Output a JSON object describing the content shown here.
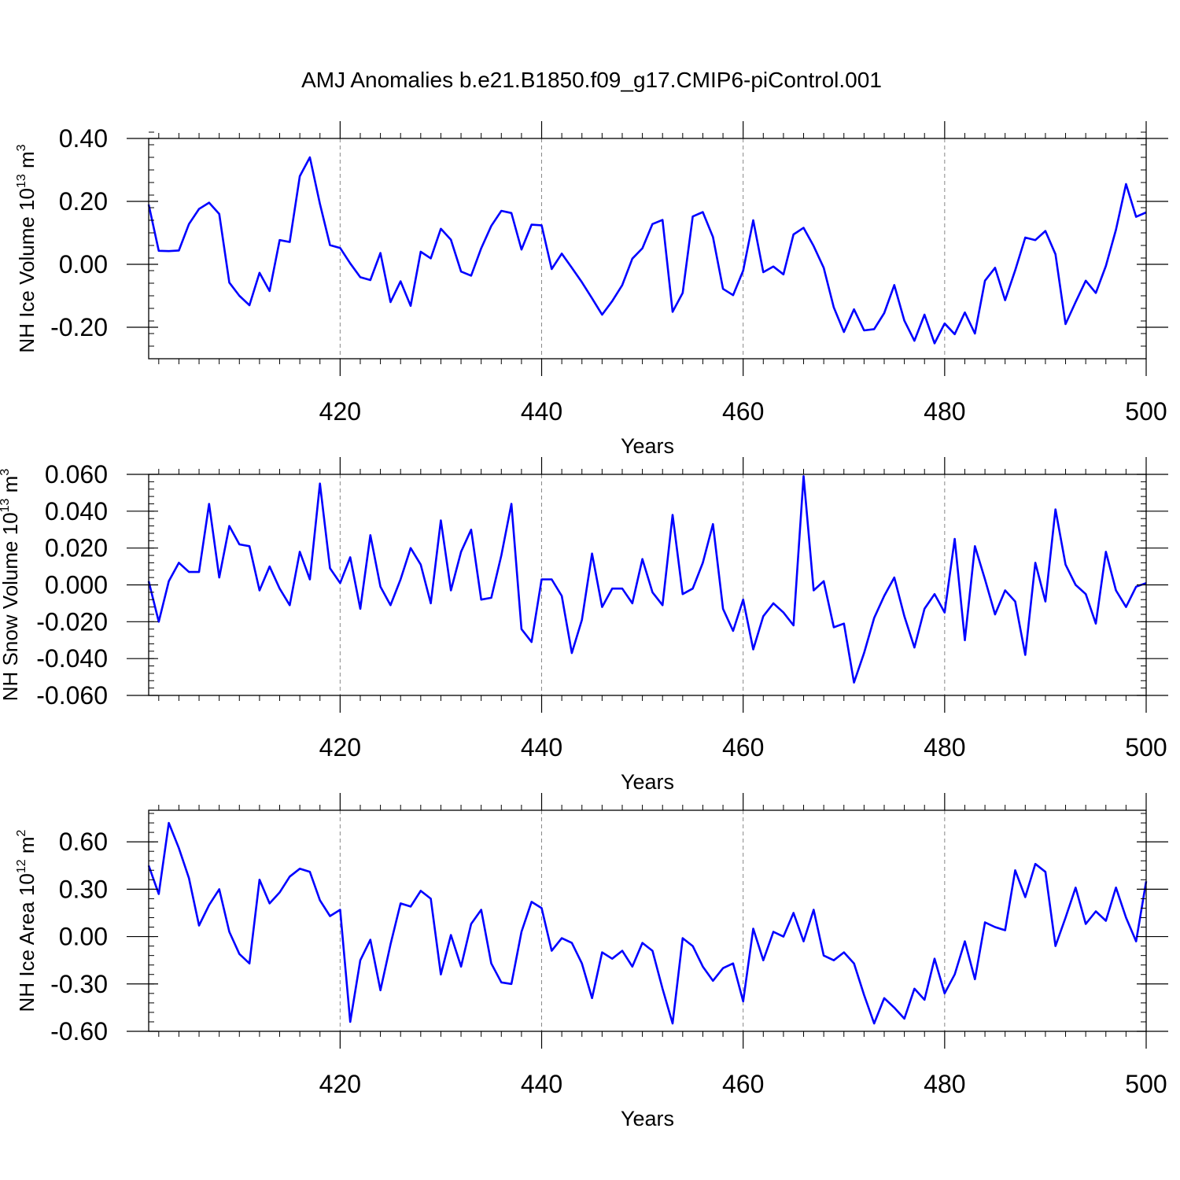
{
  "figure_title": "AMJ Anomalies b.e21.B1850.f09_g17.CMIP6-piControl.001",
  "colors": {
    "series": "#0000ff",
    "axes": "#000000",
    "grid": "#888888"
  },
  "chart_data": [
    {
      "type": "line",
      "title": "AMJ Anomalies b.e21.B1850.f09_g17.CMIP6-piControl.001",
      "xlabel": "Years",
      "ylabel": {
        "text": "NH Ice Volume 10",
        "sup1": "13",
        "unit": " m",
        "sup2": "3"
      },
      "xlim": [
        401,
        500
      ],
      "ylim": [
        -0.3,
        0.4
      ],
      "xticks": [
        420,
        440,
        460,
        480,
        500
      ],
      "yticks": [
        -0.2,
        0.0,
        0.2,
        0.4
      ],
      "ytick_labels": [
        "-0.20",
        "0.00",
        "0.20",
        "0.40"
      ],
      "yminor_step": 0.04,
      "grid": "vertical dashed at major x ticks",
      "x_start": 401,
      "values": [
        0.19,
        0.043,
        0.042,
        0.044,
        0.128,
        0.176,
        0.196,
        0.16,
        -0.058,
        -0.1,
        -0.13,
        -0.027,
        -0.085,
        0.077,
        0.071,
        0.28,
        0.34,
        0.192,
        0.061,
        0.052,
        0.003,
        -0.041,
        -0.05,
        0.036,
        -0.12,
        -0.054,
        -0.132,
        0.04,
        0.019,
        0.113,
        0.078,
        -0.023,
        -0.036,
        0.051,
        0.122,
        0.17,
        0.163,
        0.047,
        0.126,
        0.124,
        -0.015,
        0.034,
        -0.011,
        -0.057,
        -0.108,
        -0.16,
        -0.117,
        -0.066,
        0.018,
        0.051,
        0.128,
        0.141,
        -0.151,
        -0.091,
        0.152,
        0.166,
        0.087,
        -0.078,
        -0.098,
        -0.02,
        0.14,
        -0.025,
        -0.007,
        -0.032,
        0.095,
        0.116,
        0.058,
        -0.011,
        -0.137,
        -0.215,
        -0.143,
        -0.21,
        -0.206,
        -0.155,
        -0.066,
        -0.179,
        -0.243,
        -0.16,
        -0.251,
        -0.188,
        -0.222,
        -0.153,
        -0.22,
        -0.052,
        -0.011,
        -0.114,
        -0.019,
        0.085,
        0.077,
        0.106,
        0.032,
        -0.19,
        -0.12,
        -0.052,
        -0.091,
        -0.005,
        0.11,
        0.255,
        0.151,
        0.165
      ]
    },
    {
      "type": "line",
      "xlabel": "Years",
      "ylabel": {
        "text": "NH Snow Volume 10",
        "sup1": "13",
        "unit": " m",
        "sup2": "3"
      },
      "xlim": [
        401,
        500
      ],
      "ylim": [
        -0.06,
        0.06
      ],
      "xticks": [
        420,
        440,
        460,
        480,
        500
      ],
      "yticks": [
        -0.06,
        -0.04,
        -0.02,
        0.0,
        0.02,
        0.04,
        0.06
      ],
      "ytick_labels": [
        "-0.060",
        "-0.040",
        "-0.020",
        "0.000",
        "0.020",
        "0.040",
        "0.060"
      ],
      "yminor_step": 0.004,
      "grid": "vertical dashed at major x ticks",
      "x_start": 401,
      "values": [
        0.002,
        -0.02,
        0.002,
        0.012,
        0.007,
        0.007,
        0.044,
        0.004,
        0.032,
        0.022,
        0.021,
        -0.003,
        0.01,
        -0.002,
        -0.011,
        0.018,
        0.003,
        0.055,
        0.009,
        0.001,
        0.015,
        -0.013,
        0.027,
        -0.001,
        -0.011,
        0.003,
        0.02,
        0.011,
        -0.01,
        0.035,
        -0.003,
        0.018,
        0.03,
        -0.008,
        -0.007,
        0.016,
        0.044,
        -0.024,
        -0.031,
        0.003,
        0.003,
        -0.006,
        -0.037,
        -0.019,
        0.017,
        -0.012,
        -0.002,
        -0.002,
        -0.01,
        0.014,
        -0.004,
        -0.011,
        0.038,
        -0.005,
        -0.002,
        0.012,
        0.033,
        -0.013,
        -0.025,
        -0.008,
        -0.035,
        -0.017,
        -0.01,
        -0.015,
        -0.022,
        0.059,
        -0.003,
        0.002,
        -0.023,
        -0.021,
        -0.053,
        -0.037,
        -0.018,
        -0.006,
        0.004,
        -0.017,
        -0.034,
        -0.013,
        -0.005,
        -0.015,
        0.025,
        -0.03,
        0.021,
        0.003,
        -0.016,
        -0.003,
        -0.009,
        -0.038,
        0.012,
        -0.009,
        0.041,
        0.011,
        0.0,
        -0.005,
        -0.021,
        0.018,
        -0.003,
        -0.012,
        -0.001,
        0.001
      ]
    },
    {
      "type": "line",
      "xlabel": "Years",
      "ylabel": {
        "text": "NH Ice Area 10",
        "sup1": "12",
        "unit": " m",
        "sup2": "2"
      },
      "xlim": [
        401,
        500
      ],
      "ylim": [
        -0.6,
        0.8
      ],
      "xticks": [
        420,
        440,
        460,
        480,
        500
      ],
      "yticks": [
        -0.6,
        -0.3,
        0.0,
        0.3,
        0.6
      ],
      "ytick_labels": [
        "-0.60",
        "-0.30",
        "0.00",
        "0.30",
        "0.60"
      ],
      "yminor_step": 0.06,
      "grid": "vertical dashed at major x ticks",
      "x_start": 401,
      "values": [
        0.45,
        0.27,
        0.72,
        0.56,
        0.37,
        0.07,
        0.2,
        0.3,
        0.03,
        -0.11,
        -0.17,
        0.36,
        0.21,
        0.28,
        0.38,
        0.43,
        0.41,
        0.23,
        0.13,
        0.17,
        -0.54,
        -0.15,
        -0.02,
        -0.34,
        -0.05,
        0.21,
        0.19,
        0.29,
        0.24,
        -0.24,
        0.01,
        -0.19,
        0.08,
        0.17,
        -0.17,
        -0.29,
        -0.3,
        0.03,
        0.22,
        0.18,
        -0.09,
        -0.01,
        -0.04,
        -0.17,
        -0.39,
        -0.1,
        -0.14,
        -0.09,
        -0.19,
        -0.04,
        -0.09,
        -0.33,
        -0.55,
        -0.01,
        -0.06,
        -0.19,
        -0.28,
        -0.2,
        -0.17,
        -0.41,
        0.05,
        -0.15,
        0.03,
        0.0,
        0.15,
        -0.03,
        0.17,
        -0.12,
        -0.15,
        -0.1,
        -0.17,
        -0.37,
        -0.55,
        -0.39,
        -0.45,
        -0.52,
        -0.33,
        -0.4,
        -0.14,
        -0.36,
        -0.24,
        -0.03,
        -0.27,
        0.09,
        0.06,
        0.04,
        0.42,
        0.25,
        0.46,
        0.41,
        -0.06,
        0.12,
        0.31,
        0.08,
        0.16,
        0.1,
        0.31,
        0.12,
        -0.03,
        0.35
      ]
    }
  ]
}
